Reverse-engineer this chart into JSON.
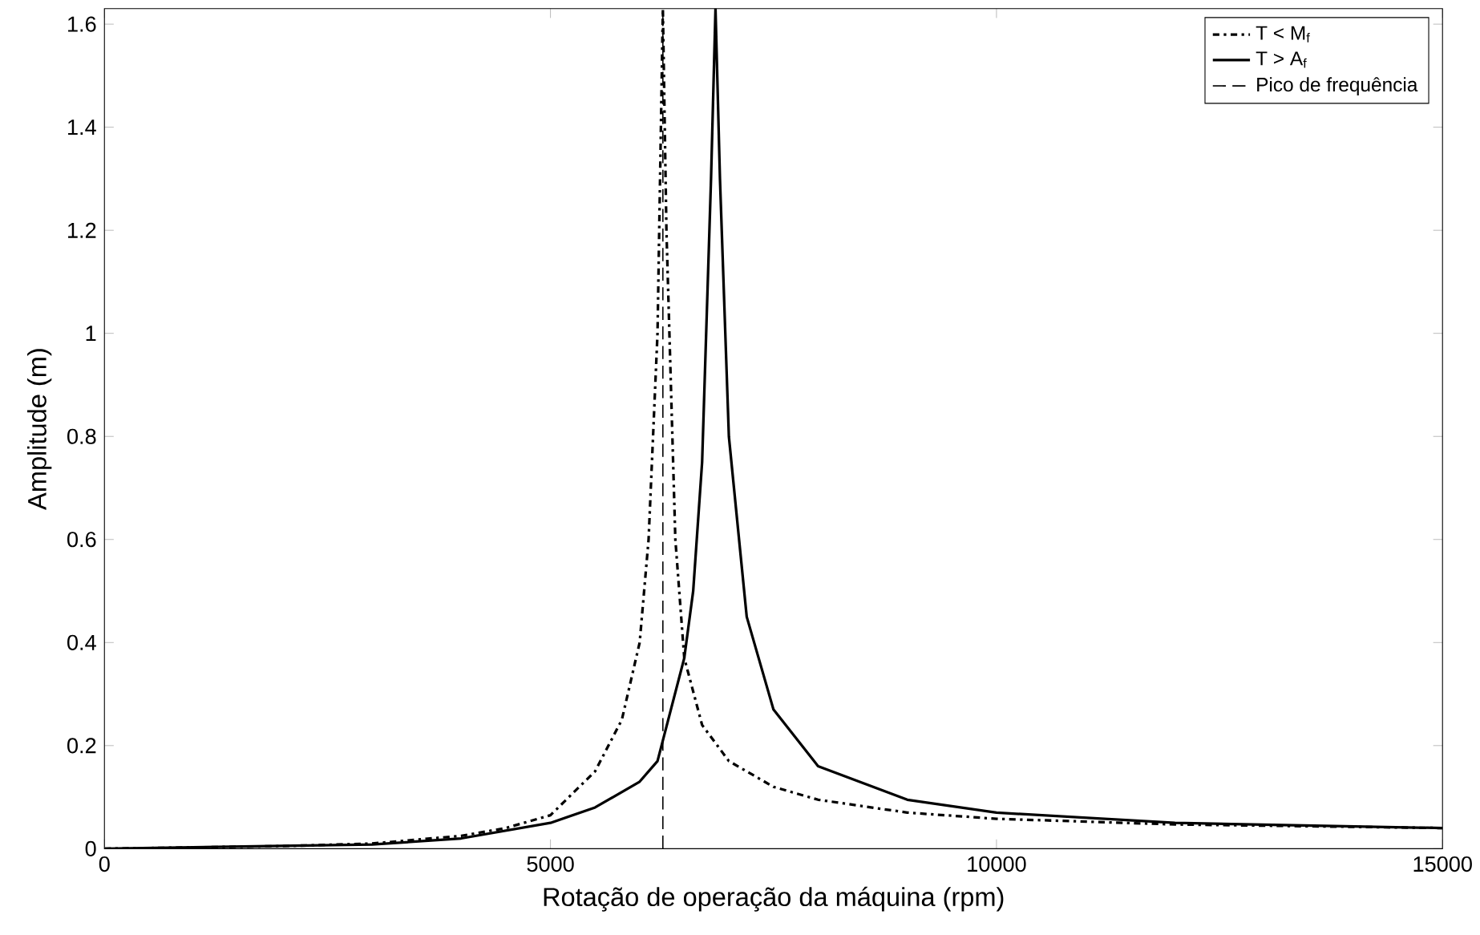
{
  "chart_data": {
    "type": "line",
    "xlabel": "Rotação de operação da máquina (rpm)",
    "ylabel": "Amplitude (m)",
    "xlim": [
      0,
      15000
    ],
    "ylim": [
      0,
      1.63
    ],
    "xticks": [
      0,
      5000,
      10000,
      15000
    ],
    "yticks": [
      0,
      0.2,
      0.4,
      0.6,
      0.8,
      1,
      1.2,
      1.4,
      1.6
    ],
    "grid": false,
    "legend": "top right",
    "series": [
      {
        "name": "T < M$_{f}$",
        "color": "#000000",
        "line_style": "dashdot",
        "x": [
          0,
          2000,
          3000,
          4000,
          4500,
          5000,
          5500,
          5800,
          6000,
          6100,
          6200,
          6260,
          6300,
          6400,
          6500,
          6700,
          7000,
          7500,
          8000,
          9000,
          10000,
          12000,
          15000
        ],
        "values": [
          0,
          0.005,
          0.01,
          0.025,
          0.04,
          0.065,
          0.15,
          0.25,
          0.4,
          0.6,
          1.0,
          1.63,
          1.2,
          0.6,
          0.37,
          0.24,
          0.17,
          0.12,
          0.095,
          0.07,
          0.058,
          0.047,
          0.04
        ]
      },
      {
        "name": "T > A$_{f}$",
        "color": "#000000",
        "line_style": "solid",
        "x": [
          0,
          3000,
          4000,
          5000,
          5500,
          6000,
          6200,
          6500,
          6600,
          6700,
          6800,
          6850,
          6900,
          7000,
          7200,
          7500,
          8000,
          9000,
          10000,
          12000,
          15000
        ],
        "values": [
          0,
          0.008,
          0.02,
          0.05,
          0.08,
          0.13,
          0.17,
          0.37,
          0.5,
          0.75,
          1.3,
          1.63,
          1.3,
          0.8,
          0.45,
          0.27,
          0.16,
          0.095,
          0.07,
          0.05,
          0.04
        ]
      },
      {
        "name": "Pico de frequência",
        "color": "#000000",
        "line_style": "dashed",
        "x": [
          6260,
          6260
        ],
        "values": [
          0,
          1.63
        ]
      }
    ]
  }
}
